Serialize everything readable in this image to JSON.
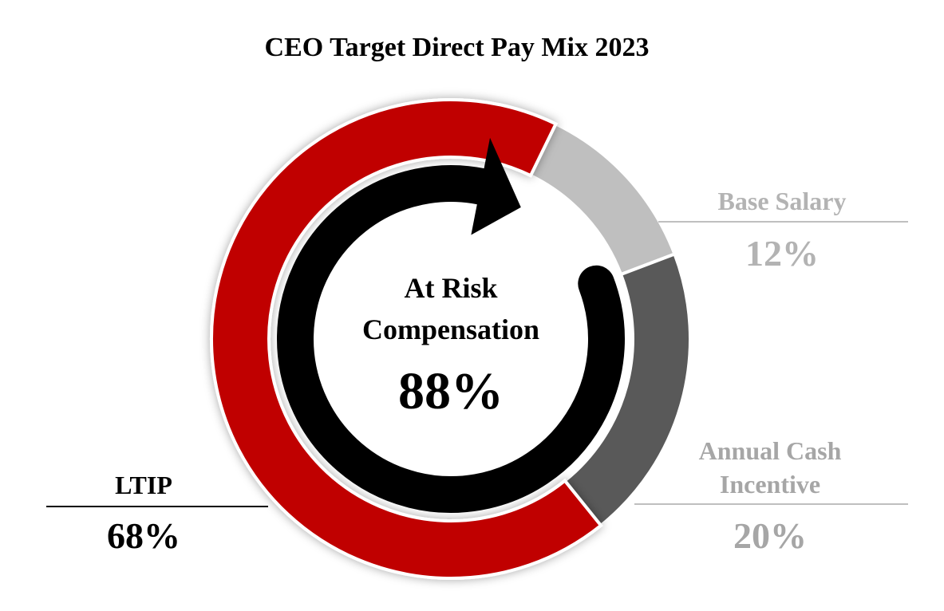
{
  "chart_data": {
    "type": "donut",
    "title": "CEO Target Direct Pay Mix 2023",
    "categories": [
      "Base Salary",
      "Annual Cash Incentive",
      "LTIP"
    ],
    "values": [
      12,
      20,
      68
    ],
    "value_labels": [
      "12%",
      "20%",
      "68%"
    ],
    "colors": [
      "#bfbfbf",
      "#595959",
      "#c00000"
    ],
    "label_colors": [
      "#b3b3b3",
      "#a6a6a6",
      "#000000"
    ],
    "center": {
      "text": "At Risk Compensation",
      "value": 88,
      "label": "88%"
    }
  }
}
